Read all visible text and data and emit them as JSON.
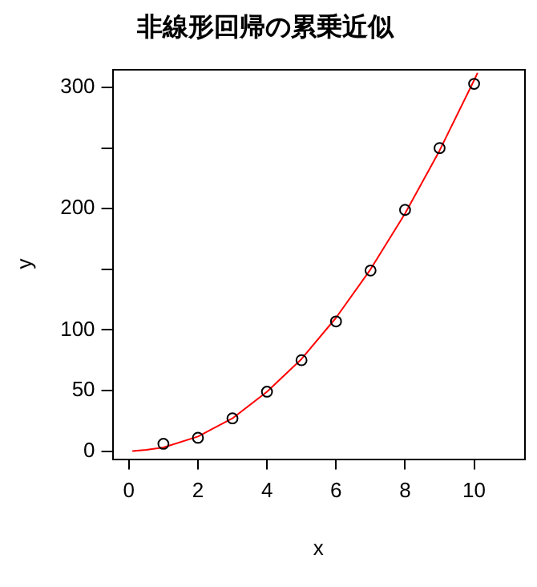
{
  "chart_data": {
    "type": "scatter",
    "title": "非線形回帰の累乗近似",
    "xlabel": "x",
    "ylabel": "y",
    "xlim": [
      -0.47,
      11.45
    ],
    "xticks": [
      0,
      2,
      4,
      6,
      8,
      10
    ],
    "ylim": [
      -6,
      315
    ],
    "yticks": [
      0,
      50,
      100,
      {
        "value": 150,
        "label": null
      },
      200,
      {
        "value": 250,
        "label": null
      },
      300
    ],
    "grid": false,
    "legend": false,
    "series": [
      {
        "color": "#000000",
        "marker": "circle",
        "x": [
          1,
          2,
          3,
          4,
          5,
          6,
          7,
          8,
          9,
          10
        ],
        "values": [
          6,
          11,
          27,
          49,
          75,
          107,
          149,
          199,
          250,
          303
        ]
      },
      {
        "type": "line",
        "color": "#ff0000",
        "marker": "none",
        "line_style": "solid",
        "x": [
          0.1,
          0.5,
          1,
          2,
          3,
          4,
          5,
          6,
          7,
          8,
          9,
          10,
          10.1
        ],
        "values": [
          0,
          1,
          3,
          12,
          27,
          49,
          76,
          110,
          150,
          196,
          248,
          306,
          312
        ]
      }
    ]
  }
}
